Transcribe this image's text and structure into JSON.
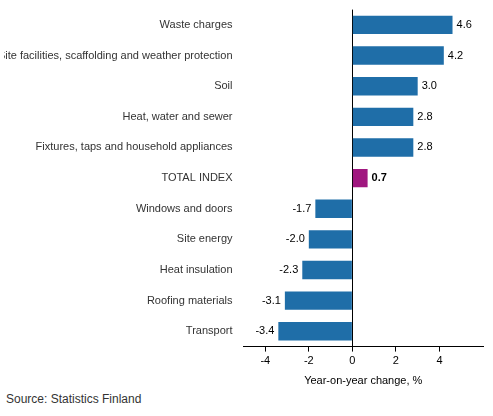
{
  "chart_data": {
    "type": "bar",
    "orientation": "horizontal",
    "categories": [
      "Waste charges",
      "Site facilities, scaffolding and weather protection",
      "Soil",
      "Heat, water and sewer",
      "Fixtures, taps and household appliances",
      "TOTAL INDEX",
      "Windows and doors",
      "Site energy",
      "Heat insulation",
      "Roofing materials",
      "Transport"
    ],
    "values": [
      4.6,
      4.2,
      3.0,
      2.8,
      2.8,
      0.7,
      -1.7,
      -2.0,
      -2.3,
      -3.1,
      -3.4
    ],
    "value_labels": [
      "4.6",
      "4.2",
      "3.0",
      "2.8",
      "2.8",
      "0.7",
      "-1.7",
      "-2.0",
      "-2.3",
      "-3.1",
      "-3.4"
    ],
    "colors": [
      "#1f6ea8",
      "#1f6ea8",
      "#1f6ea8",
      "#1f6ea8",
      "#1f6ea8",
      "#a0177f",
      "#1f6ea8",
      "#1f6ea8",
      "#1f6ea8",
      "#1f6ea8",
      "#1f6ea8"
    ],
    "xlabel": "Year-on-year change, %",
    "source": "Source: Statistics Finland",
    "xlim": [
      -5,
      6
    ],
    "xticks": [
      -4,
      -2,
      0,
      2,
      4
    ],
    "grid": false,
    "data_labels": true
  }
}
